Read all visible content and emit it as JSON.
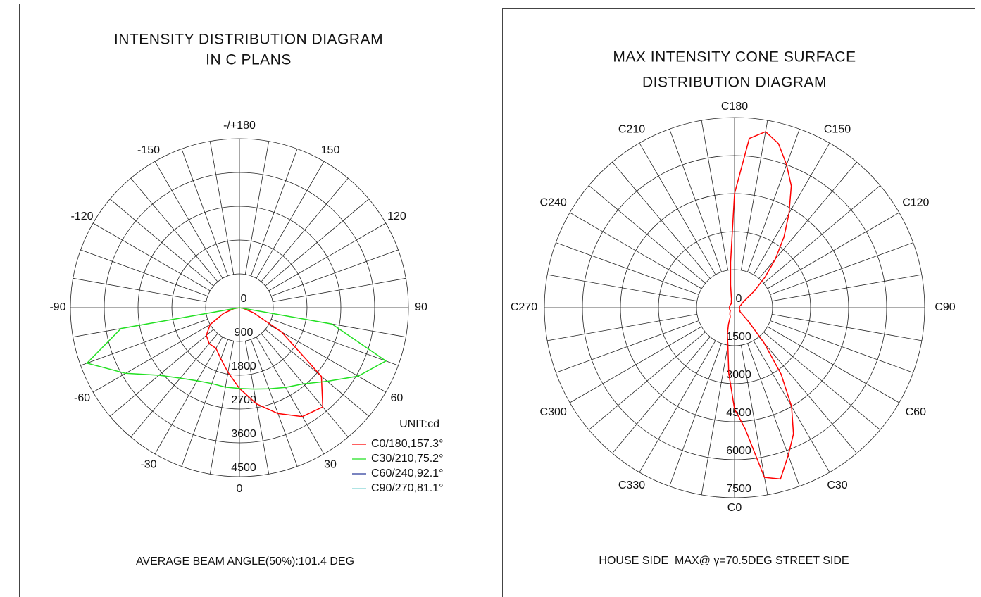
{
  "chart_data": [
    {
      "type": "polar",
      "title": [
        "INTENSITY DISTRIBUTION DIAGRAM",
        "IN C PLANS"
      ],
      "x": [
        -90,
        -80,
        -70,
        -60,
        -50,
        -40,
        -30,
        -20,
        -10,
        0,
        10,
        20,
        30,
        40,
        50,
        60,
        70,
        80,
        90
      ],
      "series": [
        {
          "name": "C0/180,157.3°",
          "color": "#ff0000",
          "values": [
            0,
            150,
            450,
            900,
            1150,
            1250,
            1250,
            1450,
            1750,
            2150,
            2600,
            3000,
            3350,
            3450,
            2850,
            1300,
            400,
            100,
            0
          ]
        },
        {
          "name": "C30/210,75.2°",
          "color": "#22e022",
          "values": [
            0,
            3200,
            4320,
            3500,
            2800,
            2450,
            2250,
            2150,
            2150,
            2150,
            2200,
            2300,
            2450,
            2650,
            3050,
            3650,
            4150,
            2500,
            0
          ]
        },
        {
          "name": "C60/240,92.1°",
          "color": "#2a3a9a",
          "values": [
            null,
            null,
            null,
            null,
            null,
            null,
            null,
            null,
            null,
            null,
            null,
            null,
            null,
            null,
            null,
            null,
            null,
            null,
            null
          ]
        },
        {
          "name": "C90/270,81.1°",
          "color": "#7fd4d4",
          "values": [
            null,
            null,
            null,
            null,
            null,
            null,
            null,
            null,
            null,
            null,
            null,
            null,
            null,
            null,
            null,
            null,
            null,
            null,
            null
          ]
        }
      ],
      "rlim": [
        0,
        4500
      ],
      "rticks": [
        0,
        900,
        1800,
        2700,
        3600,
        4500
      ],
      "angle_ticks": [
        {
          "value": 180,
          "label": "-/+180"
        },
        150,
        120,
        90,
        60,
        30,
        0,
        -30,
        -60,
        -90,
        -120,
        -150
      ],
      "legend_title": "UNIT:cd",
      "footnote": "AVERAGE BEAM ANGLE(50%):101.4 DEG"
    },
    {
      "type": "polar",
      "title": [
        "MAX INTENSITY CONE SURFACE",
        "DISTRIBUTION DIAGRAM"
      ],
      "x": [
        0,
        5,
        10,
        15,
        20,
        25,
        30,
        35,
        40,
        45,
        50,
        55,
        60,
        65,
        70,
        75,
        80,
        85,
        90,
        95,
        100,
        105,
        110,
        115,
        120,
        125,
        130,
        135,
        140,
        145,
        150,
        155,
        160,
        165,
        170,
        175,
        180,
        185,
        190,
        195,
        200,
        205,
        210,
        215,
        220,
        225,
        230,
        235,
        240,
        245,
        250,
        255,
        260,
        265,
        270,
        275,
        280,
        285,
        290,
        295,
        300,
        305,
        310,
        315,
        320,
        325,
        330,
        335,
        340,
        345,
        350,
        355
      ],
      "series": [
        {
          "name": "C0",
          "color": "#ff0000",
          "values": [
            4000,
            4800,
            6800,
            7000,
            6200,
            5500,
            4500,
            3200,
            1800,
            800,
            400,
            250,
            250,
            220,
            200,
            200,
            200,
            200,
            200,
            200,
            200,
            200,
            250,
            300,
            350,
            500,
            1000,
            1700,
            2500,
            3400,
            4300,
            5300,
            6000,
            6700,
            7050,
            6700,
            4500,
            1800,
            900,
            500,
            350,
            300,
            250,
            220,
            200,
            200,
            200,
            200,
            200,
            200,
            200,
            200,
            200,
            200,
            200,
            200,
            200,
            200,
            200,
            200,
            200,
            200,
            220,
            250,
            280,
            320,
            350,
            400,
            700,
            1100,
            1500,
            2600
          ]
        }
      ],
      "rlim": [
        0,
        7500
      ],
      "rticks": [
        0,
        1500,
        3000,
        4500,
        6000,
        7500
      ],
      "angle_ticks": [
        {
          "value": 0,
          "label": "C0"
        },
        {
          "value": 30,
          "label": "C30"
        },
        {
          "value": 60,
          "label": "C60"
        },
        {
          "value": 90,
          "label": "C90"
        },
        {
          "value": 120,
          "label": "C120"
        },
        {
          "value": 150,
          "label": "C150"
        },
        {
          "value": 180,
          "label": "C180"
        },
        {
          "value": 210,
          "label": "C210"
        },
        {
          "value": 240,
          "label": "C240"
        },
        {
          "value": 270,
          "label": "C270"
        },
        {
          "value": 300,
          "label": "C300"
        },
        {
          "value": 330,
          "label": "C330"
        }
      ],
      "footnote": "HOUSE SIDE  MAX@ γ=70.5DEG STREET SIDE"
    }
  ]
}
